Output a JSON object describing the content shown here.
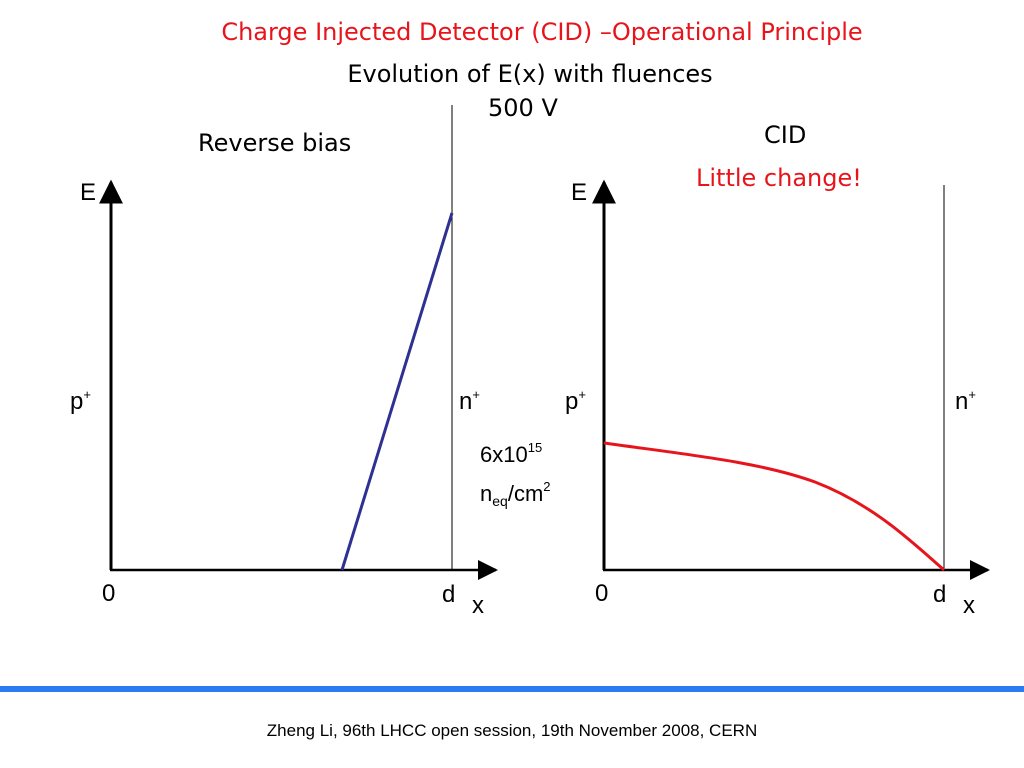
{
  "slide": {
    "title": "Charge Injected Detector (CID) –Operational Principle",
    "subtitle": "Evolution of E(x) with fluences",
    "bias": "500 V",
    "left_heading": "Reverse bias",
    "right_heading": "CID",
    "right_note": "Little change!",
    "fluence": {
      "value": "6x10",
      "exp": "15",
      "unit_n": "n",
      "unit_sub": "eq",
      "unit_rest": "/cm",
      "unit_exp": "2"
    },
    "footer": "Zheng Li, 96th LHCC open session, 19th November 2008, CERN"
  },
  "axes": {
    "y_label": "E",
    "x_label": "x",
    "origin": "0",
    "end": "d",
    "left_side": {
      "base": "p",
      "sup": "+"
    },
    "right_side": {
      "base": "n",
      "sup": "+"
    }
  },
  "colors": {
    "title": "#e8141b",
    "reverse_bias_line": "#2e3192",
    "cid_curve": "#e8141b",
    "footer_rule": "#2a7cf0"
  }
}
